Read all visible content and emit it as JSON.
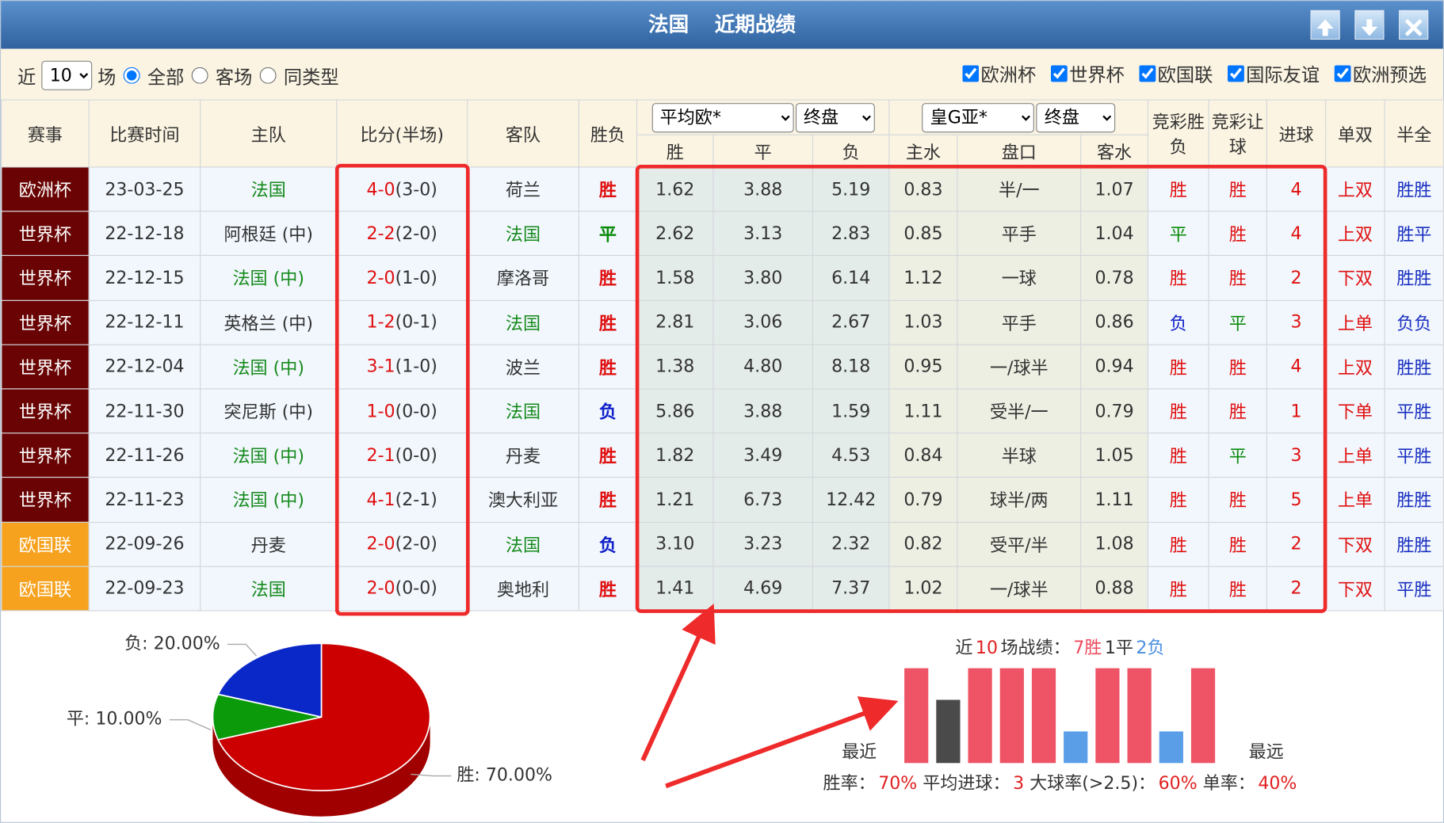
{
  "header": {
    "team": "法国",
    "title": "近期战绩"
  },
  "filters": {
    "prefix": "近",
    "count": "10",
    "suffix": "场",
    "options": [
      "全部",
      "客场",
      "同类型"
    ],
    "competitions": [
      "欧洲杯",
      "世界杯",
      "欧国联",
      "国际友谊",
      "欧洲预选"
    ]
  },
  "table": {
    "headers": [
      "赛事",
      "比赛时间",
      "主队",
      "比分(半场)",
      "客队",
      "胜负"
    ],
    "odds_selects": [
      "平均欧*",
      "终盘"
    ],
    "odds_headers": [
      "胜",
      "平",
      "负"
    ],
    "asia_selects": [
      "皇G亚*",
      "终盘"
    ],
    "asia_headers": [
      "主水",
      "盘口",
      "客水"
    ],
    "tail_headers": [
      "竞彩胜负",
      "竞彩让球",
      "进球",
      "单双",
      "半全"
    ],
    "competition_colors": {
      "欧洲杯": "#6a0404",
      "世界杯": "#6a0404",
      "欧国联": "#f6a21e"
    },
    "result_colors": {
      "胜": "#e01010",
      "平": "#0a8a0a",
      "负": "#1020c8"
    },
    "rows": [
      [
        "欧洲杯",
        "23-03-25",
        "法国",
        "4-0",
        "(3-0)",
        "荷兰",
        "胜",
        "1.62",
        "3.88",
        "5.19",
        "0.83",
        "半/一",
        "1.07",
        "胜",
        "胜",
        "4",
        "上双",
        "胜胜"
      ],
      [
        "世界杯",
        "22-12-18",
        "阿根廷 (中)",
        "2-2",
        "(2-0)",
        "法国",
        "平",
        "2.62",
        "3.13",
        "2.83",
        "0.85",
        "平手",
        "1.04",
        "平",
        "胜",
        "4",
        "上双",
        "胜平"
      ],
      [
        "世界杯",
        "22-12-15",
        "法国 (中)",
        "2-0",
        "(1-0)",
        "摩洛哥",
        "胜",
        "1.58",
        "3.80",
        "6.14",
        "1.12",
        "一球",
        "0.78",
        "胜",
        "胜",
        "2",
        "下双",
        "胜胜"
      ],
      [
        "世界杯",
        "22-12-11",
        "英格兰 (中)",
        "1-2",
        "(0-1)",
        "法国",
        "胜",
        "2.81",
        "3.06",
        "2.67",
        "1.03",
        "平手",
        "0.86",
        "负",
        "平",
        "3",
        "上单",
        "负负"
      ],
      [
        "世界杯",
        "22-12-04",
        "法国 (中)",
        "3-1",
        "(1-0)",
        "波兰",
        "胜",
        "1.38",
        "4.80",
        "8.18",
        "0.95",
        "一/球半",
        "0.94",
        "胜",
        "胜",
        "4",
        "上双",
        "胜胜"
      ],
      [
        "世界杯",
        "22-11-30",
        "突尼斯 (中)",
        "1-0",
        "(0-0)",
        "法国",
        "负",
        "5.86",
        "3.88",
        "1.59",
        "1.11",
        "受半/一",
        "0.79",
        "胜",
        "胜",
        "1",
        "下单",
        "平胜"
      ],
      [
        "世界杯",
        "22-11-26",
        "法国 (中)",
        "2-1",
        "(0-0)",
        "丹麦",
        "胜",
        "1.82",
        "3.49",
        "4.53",
        "0.84",
        "半球",
        "1.05",
        "胜",
        "平",
        "3",
        "上单",
        "平胜"
      ],
      [
        "世界杯",
        "22-11-23",
        "法国 (中)",
        "4-1",
        "(2-1)",
        "澳大利亚",
        "胜",
        "1.21",
        "6.73",
        "12.42",
        "0.79",
        "球半/两",
        "1.11",
        "胜",
        "胜",
        "5",
        "上单",
        "胜胜"
      ],
      [
        "欧国联",
        "22-09-26",
        "丹麦",
        "2-0",
        "(2-0)",
        "法国",
        "负",
        "3.10",
        "3.23",
        "2.32",
        "0.82",
        "受平/半",
        "1.08",
        "胜",
        "胜",
        "2",
        "下双",
        "胜胜"
      ],
      [
        "欧国联",
        "22-09-23",
        "法国",
        "2-0",
        "(0-0)",
        "奥地利",
        "胜",
        "1.41",
        "4.69",
        "7.37",
        "1.02",
        "一/球半",
        "0.88",
        "胜",
        "胜",
        "2",
        "下双",
        "平胜"
      ]
    ]
  },
  "pie": {
    "type": "pie",
    "values": [
      70,
      10,
      20
    ],
    "value_labels": [
      "胜: 70.00%",
      "平: 10.00%",
      "负: 20.00%"
    ],
    "colors": [
      "#cc0000",
      "#0a9a0a",
      "#0a28c8"
    ],
    "side_color": "#a00000"
  },
  "bars": {
    "type": "bar",
    "values": [
      3,
      2,
      3,
      3,
      3,
      1,
      3,
      3,
      1,
      3
    ],
    "colors": [
      "#ee5466",
      "#4a4a4a",
      "#ee5466",
      "#ee5466",
      "#ee5466",
      "#5a9ee8",
      "#ee5466",
      "#ee5466",
      "#5a9ee8",
      "#ee5466"
    ],
    "ylim": [
      0,
      3
    ],
    "summary": [
      "近",
      "10",
      "场战绩：",
      "7胜",
      "1平",
      "2负"
    ],
    "summary_colors": [
      "#333",
      "#e02020",
      "#333",
      "#ee4a5c",
      "#333",
      "#4a8ee0"
    ],
    "start_label": "最近",
    "end_label": "最远",
    "stats": [
      "胜率：",
      "70%",
      "平均进球：",
      "3",
      "大球率(>2.5)：",
      "60%",
      "单率：",
      "40%"
    ],
    "stats_colors": [
      "#333",
      "#e02020",
      "#333",
      "#e02020",
      "#333",
      "#e02020",
      "#333",
      "#e02020"
    ]
  }
}
